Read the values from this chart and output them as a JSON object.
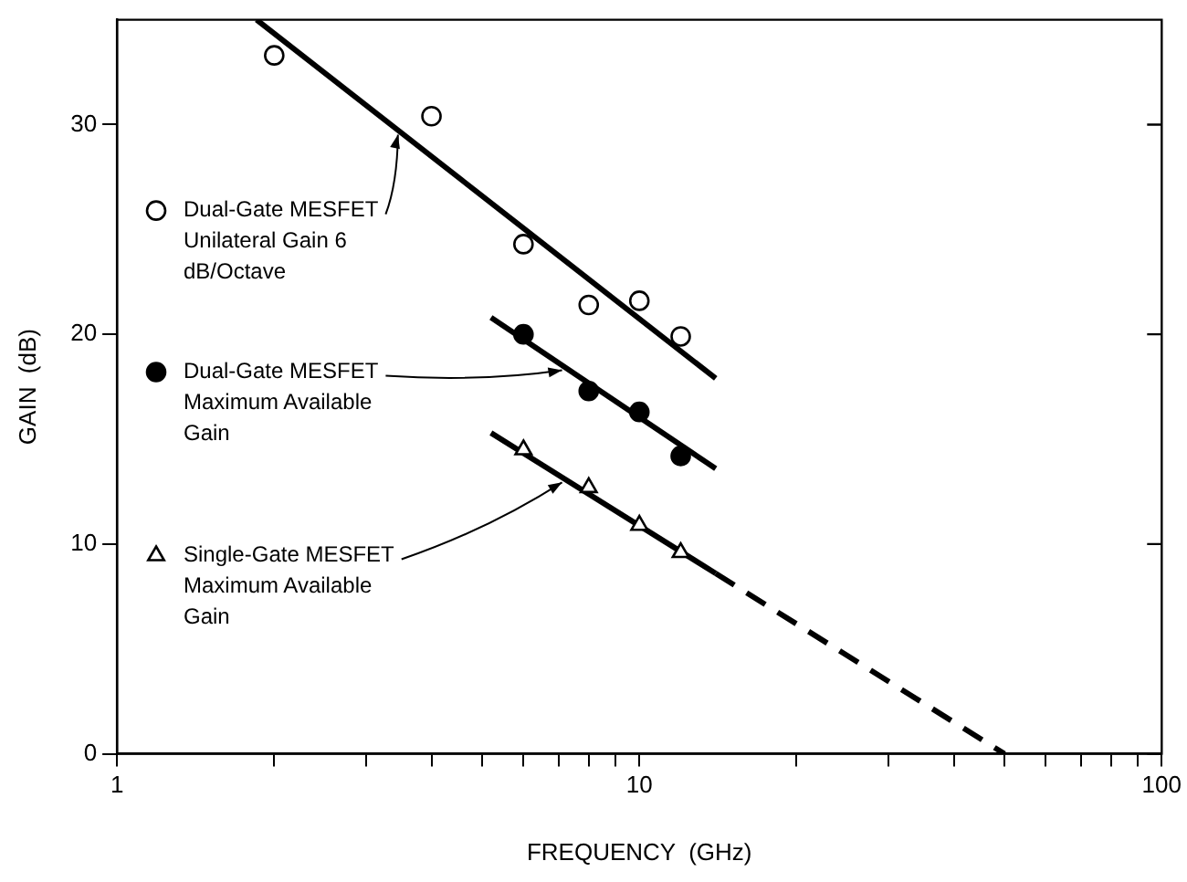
{
  "chart_data": {
    "type": "scatter",
    "xlabel": "FREQUENCY  (GHz)",
    "ylabel": "GAIN  (dB)",
    "log": "x",
    "xlim": [
      1,
      100
    ],
    "ylim": [
      0,
      35
    ],
    "xticks": [
      1,
      {
        "value": 2,
        "label": null
      },
      {
        "value": 3,
        "label": null
      },
      {
        "value": 4,
        "label": null
      },
      {
        "value": 5,
        "label": null
      },
      {
        "value": 6,
        "label": null
      },
      {
        "value": 7,
        "label": null
      },
      {
        "value": 8,
        "label": null
      },
      {
        "value": 9,
        "label": null
      },
      10,
      {
        "value": 20,
        "label": null
      },
      {
        "value": 30,
        "label": null
      },
      {
        "value": 40,
        "label": null
      },
      {
        "value": 50,
        "label": null
      },
      {
        "value": 60,
        "label": null
      },
      {
        "value": 70,
        "label": null
      },
      {
        "value": 80,
        "label": null
      },
      {
        "value": 90,
        "label": null
      },
      100
    ],
    "yticks": [
      0,
      10,
      20,
      30
    ],
    "grid": false,
    "legend": "left",
    "series": [
      {
        "name": "Dual-Gate MESFET Unilateral Gain 6 dB/Octave",
        "marker": "circle",
        "color": "#ffffff",
        "x": [
          2,
          4,
          6,
          8,
          10,
          12
        ],
        "values": [
          33.3,
          30.4,
          24.3,
          21.4,
          21.6,
          19.9
        ]
      },
      {
        "name": "Dual-Gate MESFET Maximum Available Gain",
        "marker": "circle",
        "color": "#000000",
        "x": [
          6,
          8,
          10,
          12
        ],
        "values": [
          20.0,
          17.3,
          16.3,
          14.2
        ]
      },
      {
        "name": "Single-Gate MESFET Maximum Available Gain",
        "marker": "triangle",
        "color": "#ffffff",
        "x": [
          6,
          8,
          10,
          12
        ],
        "values": [
          14.5,
          12.7,
          10.9,
          9.6
        ]
      },
      {
        "type": "line",
        "marker": "none",
        "line_style": "solid",
        "color": "#000000",
        "x": [
          1.85,
          14
        ],
        "values": [
          35,
          17.9
        ]
      },
      {
        "type": "line",
        "marker": "none",
        "line_style": "solid",
        "color": "#000000",
        "x": [
          5.2,
          14
        ],
        "values": [
          20.8,
          13.6
        ]
      },
      {
        "type": "line",
        "marker": "none",
        "line_style": "solid",
        "color": "#000000",
        "x": [
          5.2,
          14
        ],
        "values": [
          15.3,
          8.6
        ]
      },
      {
        "type": "line",
        "marker": "none",
        "line_style": "dashed",
        "color": "#000000",
        "x": [
          14,
          50
        ],
        "values": [
          8.6,
          0
        ]
      }
    ]
  }
}
